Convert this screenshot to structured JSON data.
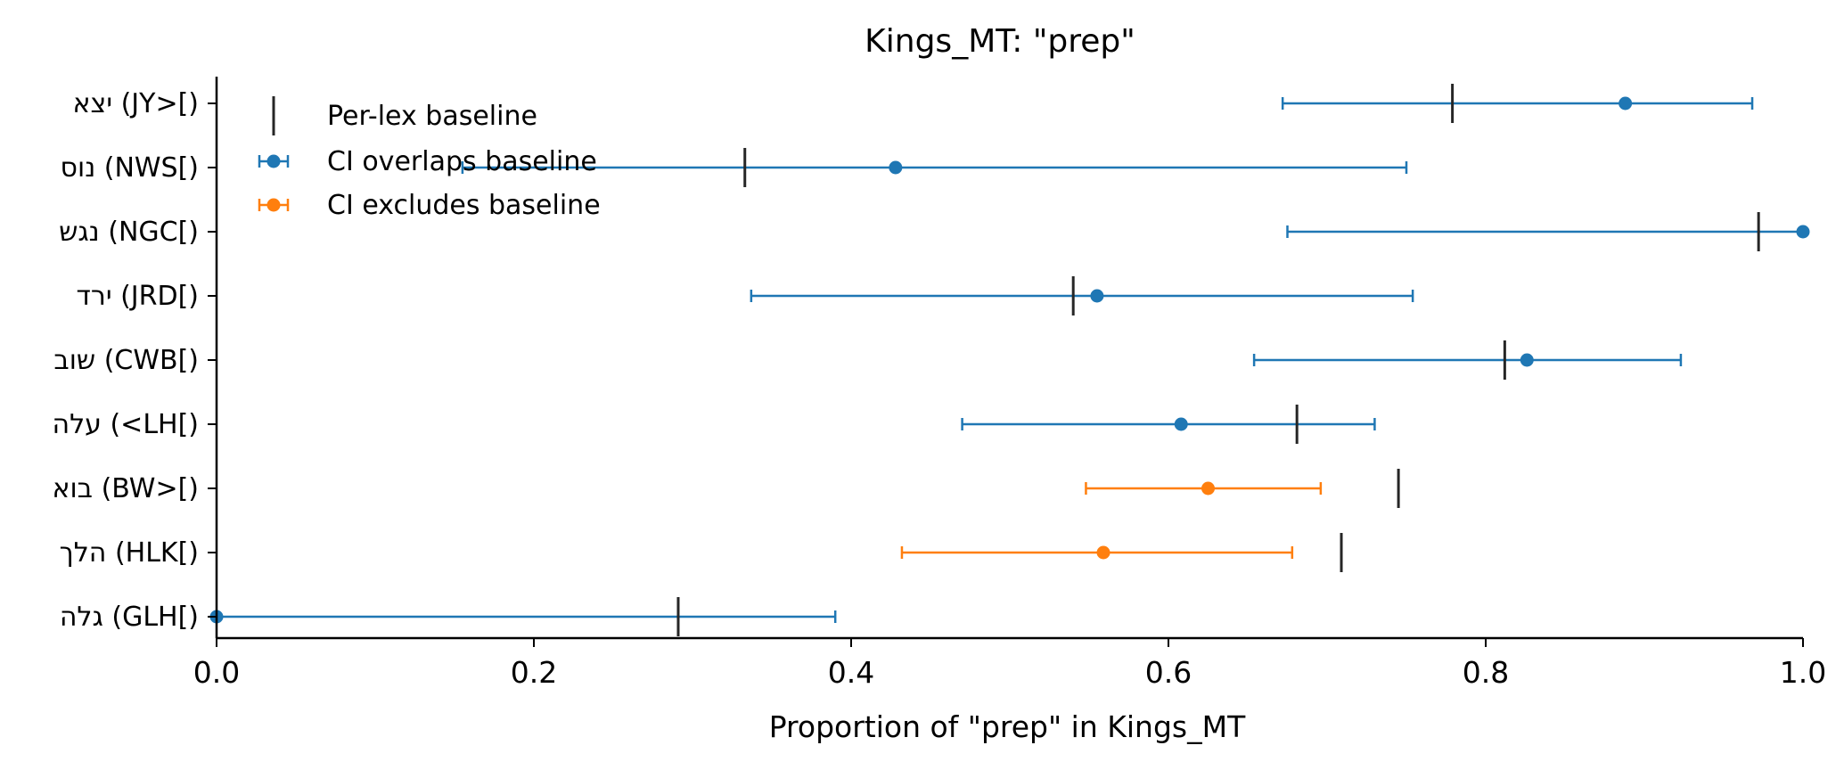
{
  "chart_data": {
    "type": "errorbar",
    "title": "Kings_MT: \"prep\"",
    "xlabel": "Proportion of \"prep\" in Kings_MT",
    "ylabel": "",
    "xlim": [
      0.0,
      1.0
    ],
    "xticks": [
      "0.0",
      "0.2",
      "0.4",
      "0.6",
      "0.8",
      "1.0"
    ],
    "grid": false,
    "legend_position": "top-left",
    "colors": {
      "overlaps": "#1f77b4",
      "excludes": "#ff7f0e",
      "baseline": "#262626"
    },
    "legend": [
      {
        "key": "baseline",
        "label": "Per-lex baseline"
      },
      {
        "key": "overlaps",
        "label": "CI overlaps baseline"
      },
      {
        "key": "excludes",
        "label": "CI excludes baseline"
      }
    ],
    "categories": [
      {
        "label": "יצא (JY>[)",
        "value": 0.888,
        "ci_low": 0.672,
        "ci_high": 0.968,
        "baseline": 0.779,
        "status": "overlaps"
      },
      {
        "label": "נוס (NWS[)",
        "value": 0.428,
        "ci_low": 0.155,
        "ci_high": 0.75,
        "baseline": 0.333,
        "status": "overlaps"
      },
      {
        "label": "נגש (NGC[)",
        "value": 1.0,
        "ci_low": 0.675,
        "ci_high": 1.0,
        "baseline": 0.972,
        "status": "overlaps"
      },
      {
        "label": "ירד (JRD[)",
        "value": 0.555,
        "ci_low": 0.337,
        "ci_high": 0.754,
        "baseline": 0.54,
        "status": "overlaps"
      },
      {
        "label": "שוב (CWB[)",
        "value": 0.826,
        "ci_low": 0.654,
        "ci_high": 0.923,
        "baseline": 0.812,
        "status": "overlaps"
      },
      {
        "label": "עלה (<LH[)",
        "value": 0.608,
        "ci_low": 0.47,
        "ci_high": 0.73,
        "baseline": 0.681,
        "status": "overlaps"
      },
      {
        "label": "בוא (BW>[)",
        "value": 0.625,
        "ci_low": 0.548,
        "ci_high": 0.696,
        "baseline": 0.745,
        "status": "excludes"
      },
      {
        "label": "הלך (HLK[)",
        "value": 0.559,
        "ci_low": 0.432,
        "ci_high": 0.678,
        "baseline": 0.709,
        "status": "excludes"
      },
      {
        "label": "גלה (GLH[)",
        "value": 0.0,
        "ci_low": 0.0,
        "ci_high": 0.39,
        "baseline": 0.291,
        "status": "overlaps"
      }
    ]
  }
}
